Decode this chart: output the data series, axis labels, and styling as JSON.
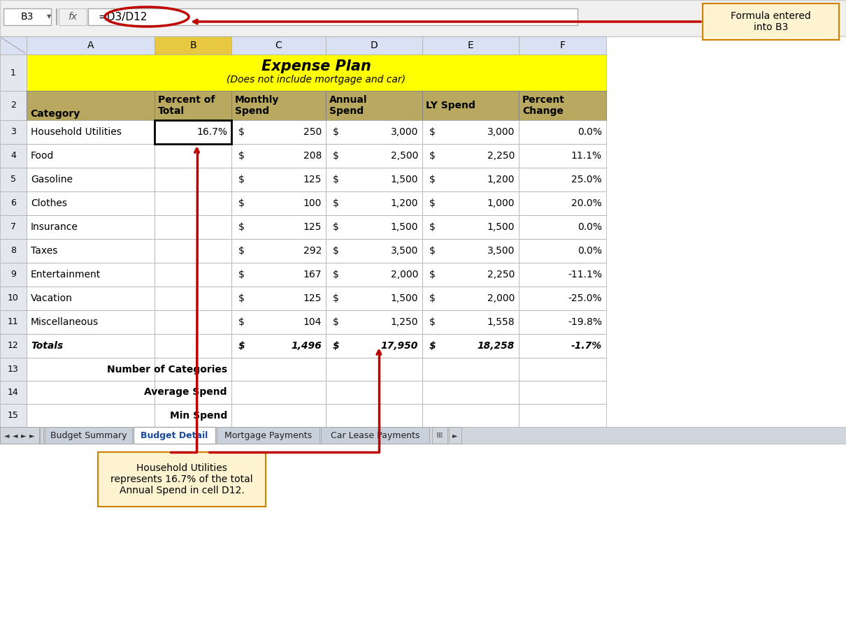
{
  "title_line1": "Expense Plan",
  "title_line2": "(Does not include mortgage and car)",
  "title_bg": "#FFFF00",
  "header_bg": "#B8A860",
  "col_b_header_bg": "#C8B870",
  "col_headers": [
    "A",
    "B",
    "C",
    "D",
    "E",
    "F"
  ],
  "col2_headers": [
    "Category",
    "Percent of\nTotal",
    "Monthly\nSpend",
    "Annual\nSpend",
    "LY Spend",
    "Percent\nChange"
  ],
  "categories": [
    "Household Utilities",
    "Food",
    "Gasoline",
    "Clothes",
    "Insurance",
    "Taxes",
    "Entertainment",
    "Vacation",
    "Miscellaneous",
    "Totals"
  ],
  "percent_of_total": [
    "16.7%",
    "",
    "",
    "",
    "",
    "",
    "",
    "",
    "",
    ""
  ],
  "monthly_spend": [
    "250",
    "208",
    "125",
    "100",
    "125",
    "292",
    "167",
    "125",
    "104",
    "1,496"
  ],
  "annual_spend": [
    "3,000",
    "2,500",
    "1,500",
    "1,200",
    "1,500",
    "3,500",
    "2,000",
    "1,500",
    "1,250",
    "17,950"
  ],
  "ly_spend": [
    "3,000",
    "2,250",
    "1,200",
    "1,000",
    "1,500",
    "3,500",
    "2,250",
    "2,000",
    "1,558",
    "18,258"
  ],
  "percent_change": [
    "0.0%",
    "11.1%",
    "25.0%",
    "20.0%",
    "0.0%",
    "0.0%",
    "-11.1%",
    "-25.0%",
    "-19.8%",
    "-1.7%"
  ],
  "extra_rows": [
    "Number of Categories",
    "Average Spend",
    "Min Spend"
  ],
  "formula_bar_text": "=D3/D12",
  "cell_ref": "B3",
  "formula_annotation": "Formula entered\ninto B3",
  "bottom_annotation": "Household Utilities\nrepresents 16.7% of the total\nAnnual Spend in cell D12.",
  "sheet_tabs": [
    "Budget Summary",
    "Budget Detail",
    "Mortgage Payments",
    "Car Lease Payments"
  ],
  "active_tab": "Budget Detail",
  "dark_red": "#C00000",
  "toolbar_bg": "#E8EAED",
  "col_header_bg": "#D9E1F2",
  "col_b_selected": "#E8C840",
  "row_num_bg": "#E4E8EE",
  "white": "#FFFFFF",
  "grid_color": "#BBBBBB",
  "annot_bg": "#FEF3D0",
  "annot_border": "#D08000"
}
